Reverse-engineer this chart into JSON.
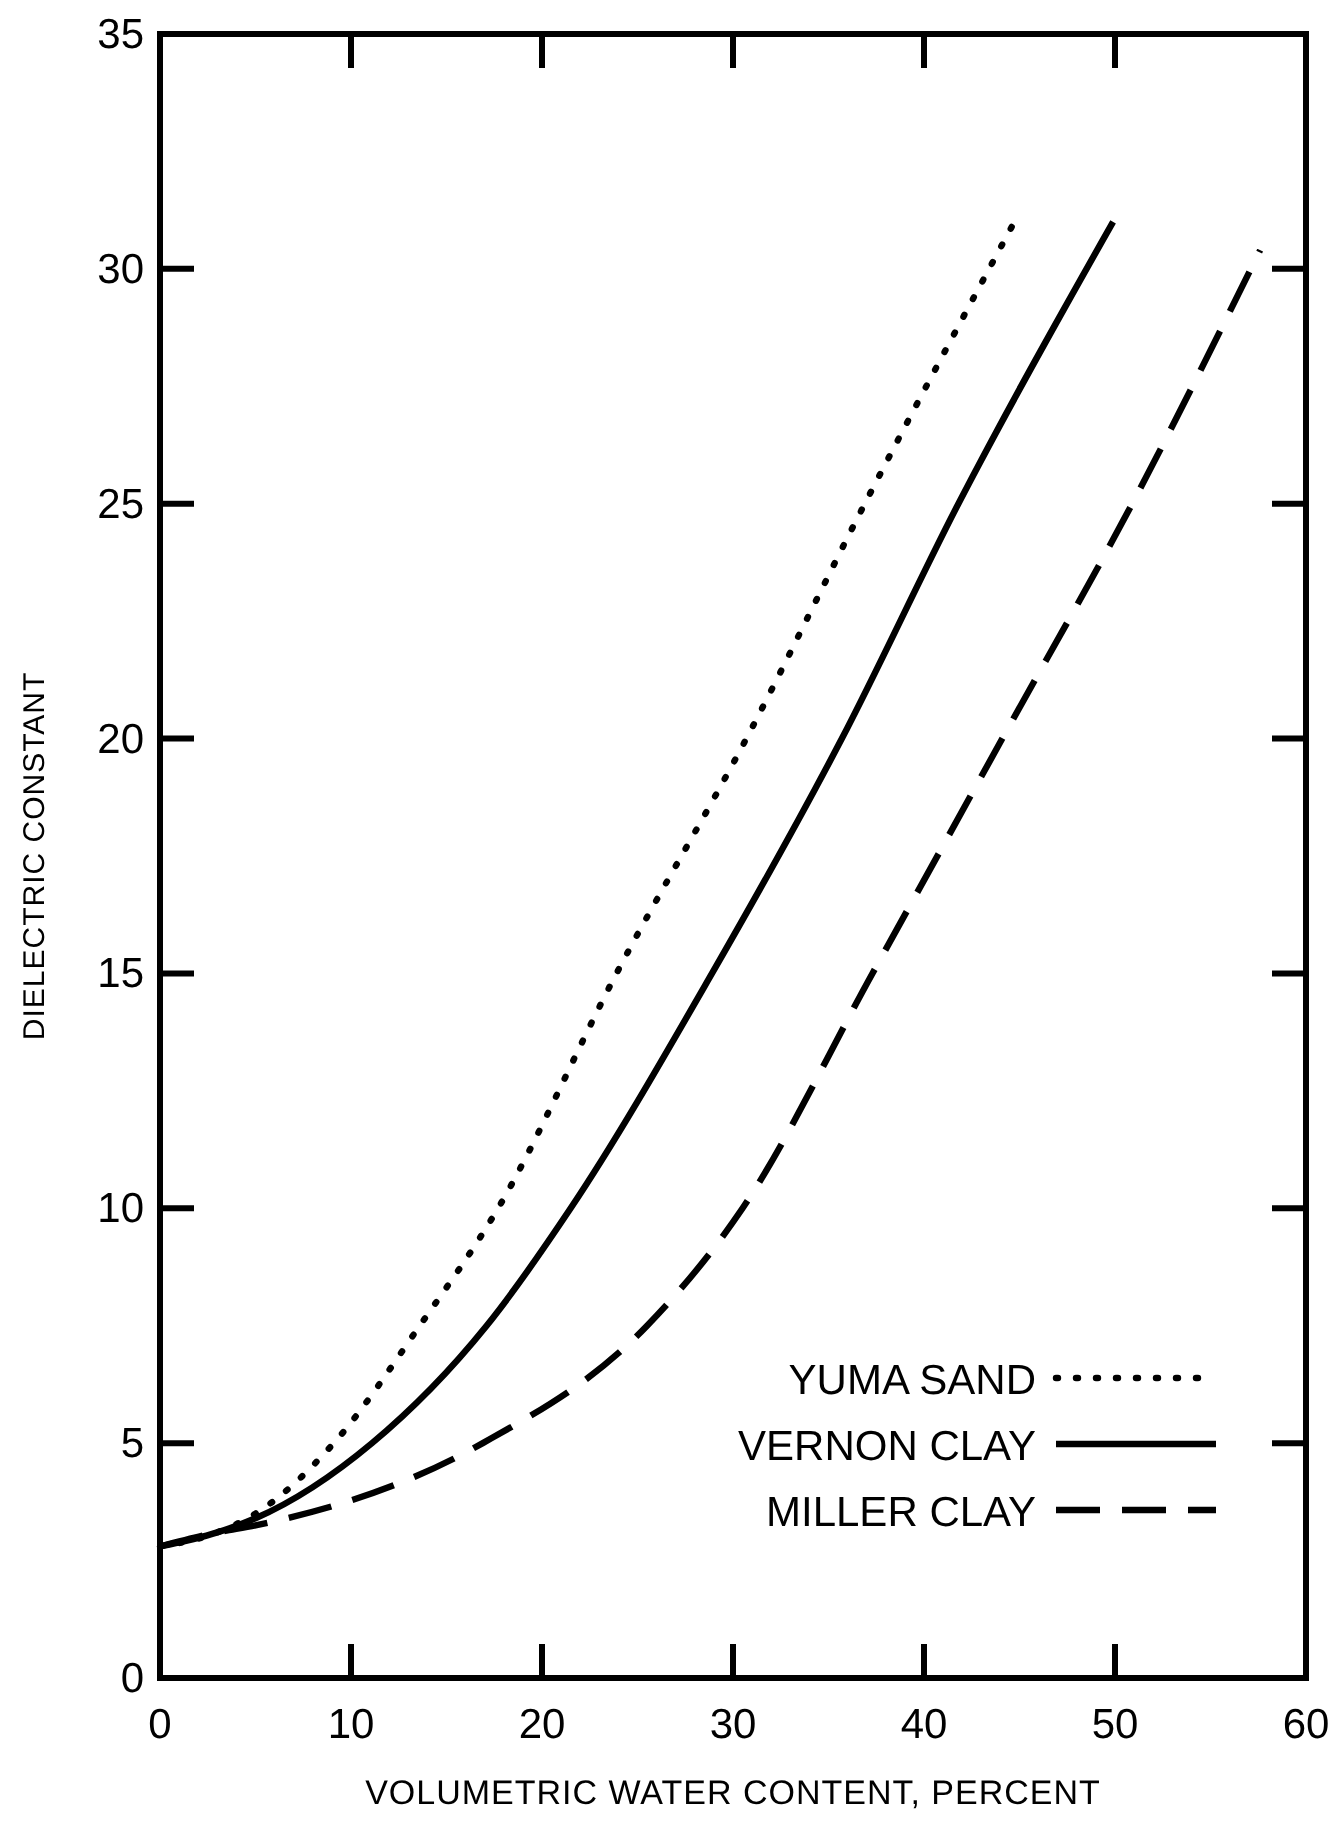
{
  "chart_data": {
    "type": "line",
    "xlabel": "VOLUMETRIC WATER CONTENT, PERCENT",
    "ylabel": "DIELECTRIC CONSTANT",
    "xlim": [
      0,
      60
    ],
    "ylim": [
      0,
      35
    ],
    "xticks": [
      0,
      10,
      20,
      30,
      40,
      50,
      60
    ],
    "yticks": [
      0,
      5,
      10,
      15,
      20,
      25,
      30,
      35
    ],
    "grid": false,
    "legend": "bottom right",
    "series": [
      {
        "name": "YUMA SAND",
        "color": "#000000",
        "line_style": "dotted",
        "x": [
          0,
          3,
          5,
          9.1,
          13.6,
          17.7,
          23.9,
          30.7,
          36.9,
          44.6
        ],
        "values": [
          2.8,
          3.1,
          3.5,
          5,
          7.5,
          10,
          15,
          20,
          25,
          30.9
        ]
      },
      {
        "name": "VERNON CLAY",
        "color": "#000000",
        "line_style": "solid",
        "x": [
          0,
          3,
          5,
          11.1,
          17.1,
          21.5,
          28.9,
          35.7,
          41.8,
          49.9
        ],
        "values": [
          2.8,
          3.1,
          3.4,
          5,
          7.5,
          10,
          15,
          20,
          25,
          31
        ]
      },
      {
        "name": "MILLER CLAY",
        "color": "#000000",
        "line_style": "dashed",
        "x": [
          0,
          3,
          5,
          16.9,
          25.5,
          30.5,
          37.3,
          44.1,
          50.9,
          57.6
        ],
        "values": [
          2.8,
          3.1,
          3.25,
          5,
          7.5,
          10,
          15,
          20,
          25,
          30.4
        ]
      }
    ]
  }
}
